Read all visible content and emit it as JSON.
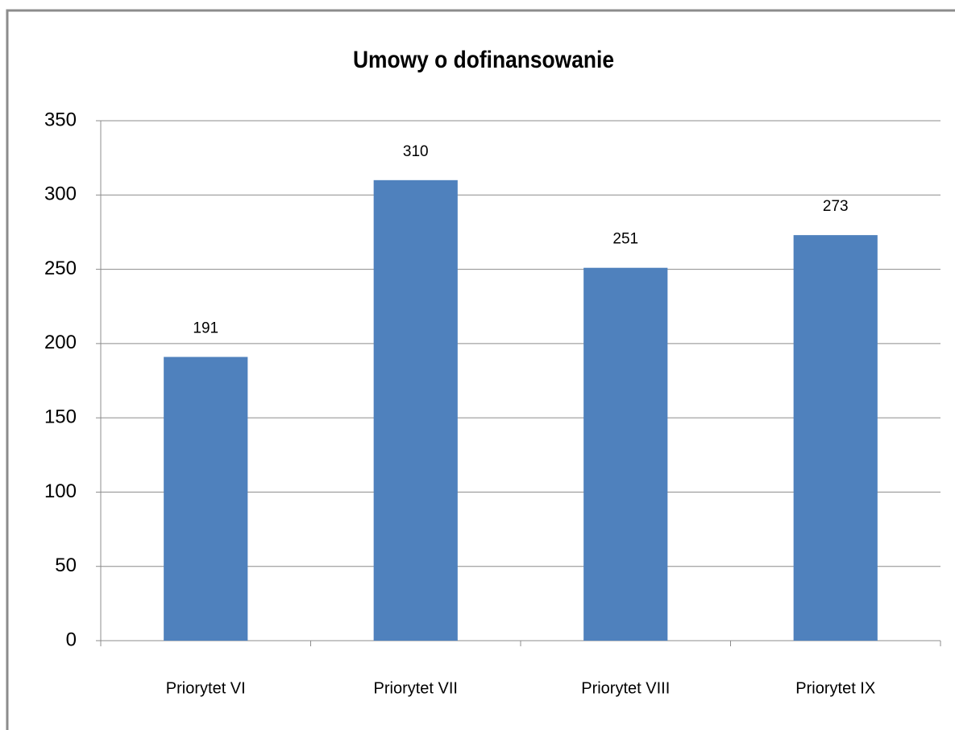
{
  "chart_data": {
    "type": "bar",
    "title": "Umowy o dofinansowanie",
    "categories": [
      "Priorytet VI",
      "Priorytet VII",
      "Priorytet VIII",
      "Priorytet IX"
    ],
    "values": [
      191,
      310,
      251,
      273
    ],
    "color": "#4f81bd",
    "ylim": [
      0,
      350
    ],
    "yticks": [
      0,
      50,
      100,
      150,
      200,
      250,
      300,
      350
    ],
    "grid": true
  }
}
